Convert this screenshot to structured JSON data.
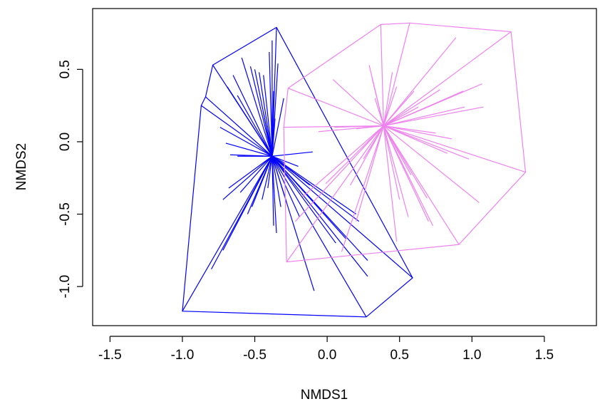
{
  "chart_data": {
    "type": "scatter",
    "subtype": "nmds-spider-hull",
    "title": "",
    "xlabel": "NMDS1",
    "ylabel": "NMDS2",
    "xlim": [
      -1.62,
      1.86
    ],
    "ylim": [
      -1.27,
      0.92
    ],
    "xticks": [
      -1.5,
      -1.0,
      -0.5,
      0.0,
      0.5,
      1.0,
      1.5
    ],
    "xtick_labels": [
      "-1.5",
      "-1.0",
      "-0.5",
      "0.0",
      "0.5",
      "1.0",
      "1.5"
    ],
    "yticks": [
      -1.0,
      -0.5,
      0.0,
      0.5
    ],
    "ytick_labels": [
      "-1.0",
      "-0.5",
      "0.0",
      "0.5"
    ],
    "grid": false,
    "legend": "none",
    "series": [
      {
        "color": "#0000ff",
        "centroid": [
          -0.38,
          -0.1
        ],
        "hull": [
          [
            -0.35,
            0.79
          ],
          [
            0.59,
            -0.94
          ],
          [
            0.27,
            -1.21
          ],
          [
            -1.0,
            -1.17
          ],
          [
            -0.87,
            0.25
          ],
          [
            -0.84,
            0.31
          ],
          [
            -0.79,
            0.53
          ]
        ],
        "points": [
          [
            -0.35,
            0.79
          ],
          [
            -0.38,
            0.7
          ],
          [
            -0.4,
            0.62
          ],
          [
            -0.59,
            0.58
          ],
          [
            -0.53,
            0.52
          ],
          [
            -0.5,
            0.5
          ],
          [
            -0.47,
            0.48
          ],
          [
            -0.44,
            0.46
          ],
          [
            -0.34,
            0.54
          ],
          [
            -0.37,
            0.35
          ],
          [
            -0.3,
            0.3
          ],
          [
            -0.65,
            0.46
          ],
          [
            -0.69,
            0.38
          ],
          [
            -0.62,
            0.32
          ],
          [
            -0.79,
            0.53
          ],
          [
            -0.84,
            0.31
          ],
          [
            -0.87,
            0.25
          ],
          [
            -0.74,
            0.1
          ],
          [
            -0.7,
            -0.01
          ],
          [
            -0.62,
            -0.1
          ],
          [
            -0.67,
            -0.09
          ],
          [
            -0.6,
            -0.35
          ],
          [
            -0.55,
            -0.5
          ],
          [
            -0.52,
            -0.45
          ],
          [
            -0.68,
            -0.32
          ],
          [
            -0.72,
            -0.4
          ],
          [
            -0.8,
            -0.88
          ],
          [
            -0.72,
            -0.75
          ],
          [
            -0.37,
            -0.58
          ],
          [
            -0.35,
            -0.63
          ],
          [
            -0.32,
            -0.45
          ],
          [
            -0.28,
            -0.42
          ],
          [
            -0.19,
            -0.52
          ],
          [
            -0.12,
            -0.3
          ],
          [
            -0.09,
            -1.03
          ],
          [
            -0.1,
            -0.07
          ],
          [
            -0.2,
            -0.17
          ],
          [
            0.2,
            -0.5
          ],
          [
            0.22,
            -0.55
          ],
          [
            0.28,
            -0.82
          ],
          [
            0.28,
            -0.93
          ],
          [
            0.13,
            -0.67
          ],
          [
            0.06,
            -0.7
          ],
          [
            0.59,
            -0.94
          ],
          [
            0.27,
            -1.21
          ],
          [
            -1.0,
            -1.17
          ],
          [
            -0.41,
            -0.32
          ],
          [
            -0.45,
            -0.4
          ],
          [
            -0.36,
            0.16
          ],
          [
            -0.44,
            0.2
          ],
          [
            -0.29,
            -0.15
          ]
        ]
      },
      {
        "color": "#ee82ee",
        "centroid": [
          0.39,
          0.11
        ],
        "hull": [
          [
            0.57,
            0.82
          ],
          [
            1.27,
            0.76
          ],
          [
            1.37,
            -0.21
          ],
          [
            0.91,
            -0.71
          ],
          [
            -0.28,
            -0.83
          ],
          [
            -0.3,
            0.1
          ],
          [
            -0.27,
            0.37
          ],
          [
            0.37,
            0.81
          ]
        ],
        "points": [
          [
            0.37,
            0.81
          ],
          [
            0.57,
            0.82
          ],
          [
            0.89,
            0.72
          ],
          [
            1.27,
            0.76
          ],
          [
            1.07,
            0.4
          ],
          [
            0.95,
            0.24
          ],
          [
            1.08,
            0.24
          ],
          [
            1.37,
            -0.21
          ],
          [
            1.05,
            -0.42
          ],
          [
            0.91,
            -0.71
          ],
          [
            0.73,
            -0.58
          ],
          [
            0.7,
            -0.55
          ],
          [
            0.56,
            -0.52
          ],
          [
            0.69,
            -0.39
          ],
          [
            0.48,
            -0.69
          ],
          [
            0.2,
            -0.55
          ],
          [
            0.1,
            -0.76
          ],
          [
            -0.28,
            -0.83
          ],
          [
            -0.22,
            -0.55
          ],
          [
            -0.01,
            -0.29
          ],
          [
            -0.17,
            -0.38
          ],
          [
            -0.3,
            0.1
          ],
          [
            -0.27,
            0.37
          ],
          [
            0.04,
            0.43
          ],
          [
            0.05,
            0.1
          ],
          [
            -0.06,
            0.07
          ],
          [
            0.2,
            0.09
          ],
          [
            0.29,
            0.53
          ],
          [
            0.31,
            0.44
          ],
          [
            0.45,
            0.48
          ],
          [
            0.48,
            0.38
          ],
          [
            0.6,
            0.35
          ],
          [
            0.78,
            0.36
          ],
          [
            0.94,
            0.35
          ],
          [
            0.63,
            0.24
          ],
          [
            0.75,
            0.06
          ],
          [
            0.83,
            -0.08
          ],
          [
            0.98,
            -0.12
          ],
          [
            0.58,
            -0.23
          ],
          [
            0.5,
            -0.4
          ],
          [
            0.25,
            -0.12
          ],
          [
            0.16,
            -0.3
          ],
          [
            0.33,
            0.3
          ],
          [
            0.86,
            0.02
          ]
        ]
      }
    ]
  }
}
